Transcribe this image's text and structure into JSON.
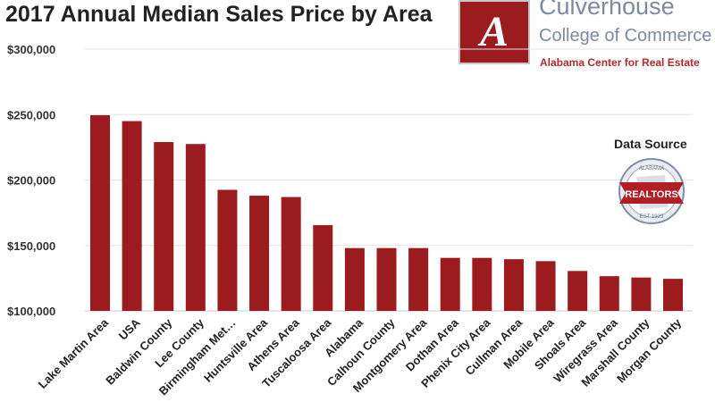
{
  "header": {
    "title": "2017 Annual Median Sales Price by Area"
  },
  "branding": {
    "logo_letter": "A",
    "name": "Culverhouse",
    "college": "College of Commerce",
    "center": "Alabama Center for Real Estate",
    "data_source_label": "Data Source",
    "badge_text": "REALTORS",
    "badge_arc_text": "ALABAMA",
    "badge_bottom_text": "EST 1923"
  },
  "colors": {
    "bar": "#9b1b1e",
    "grid": "#e3e3e3"
  },
  "chart_data": {
    "type": "bar",
    "title": "2017 Annual Median Sales Price by Area",
    "xlabel": "",
    "ylabel": "",
    "ylim": [
      100000,
      300000
    ],
    "yticks": [
      100000,
      150000,
      200000,
      250000,
      300000
    ],
    "ytick_labels": [
      "$100,000",
      "$150,000",
      "$200,000",
      "$250,000",
      "$300,000"
    ],
    "grid": true,
    "categories": [
      "Lake Martin Area",
      "USA",
      "Baldwin County",
      "Lee County",
      "Birmingham Met…",
      "Huntsville Area",
      "Athens Area",
      "Tuscaloosa Area",
      "Alabama",
      "Calhoun County",
      "Montgomery Area",
      "Dothan Area",
      "Phenix City Area",
      "Cullman Area",
      "Mobile Area",
      "Shoals Area",
      "Wiregrass Area",
      "Marshall County",
      "Morgan County"
    ],
    "values": [
      249500,
      245000,
      229000,
      227500,
      192500,
      188000,
      187000,
      165500,
      148000,
      148000,
      148000,
      140500,
      140500,
      139500,
      138000,
      130500,
      126500,
      125500,
      124500
    ]
  }
}
